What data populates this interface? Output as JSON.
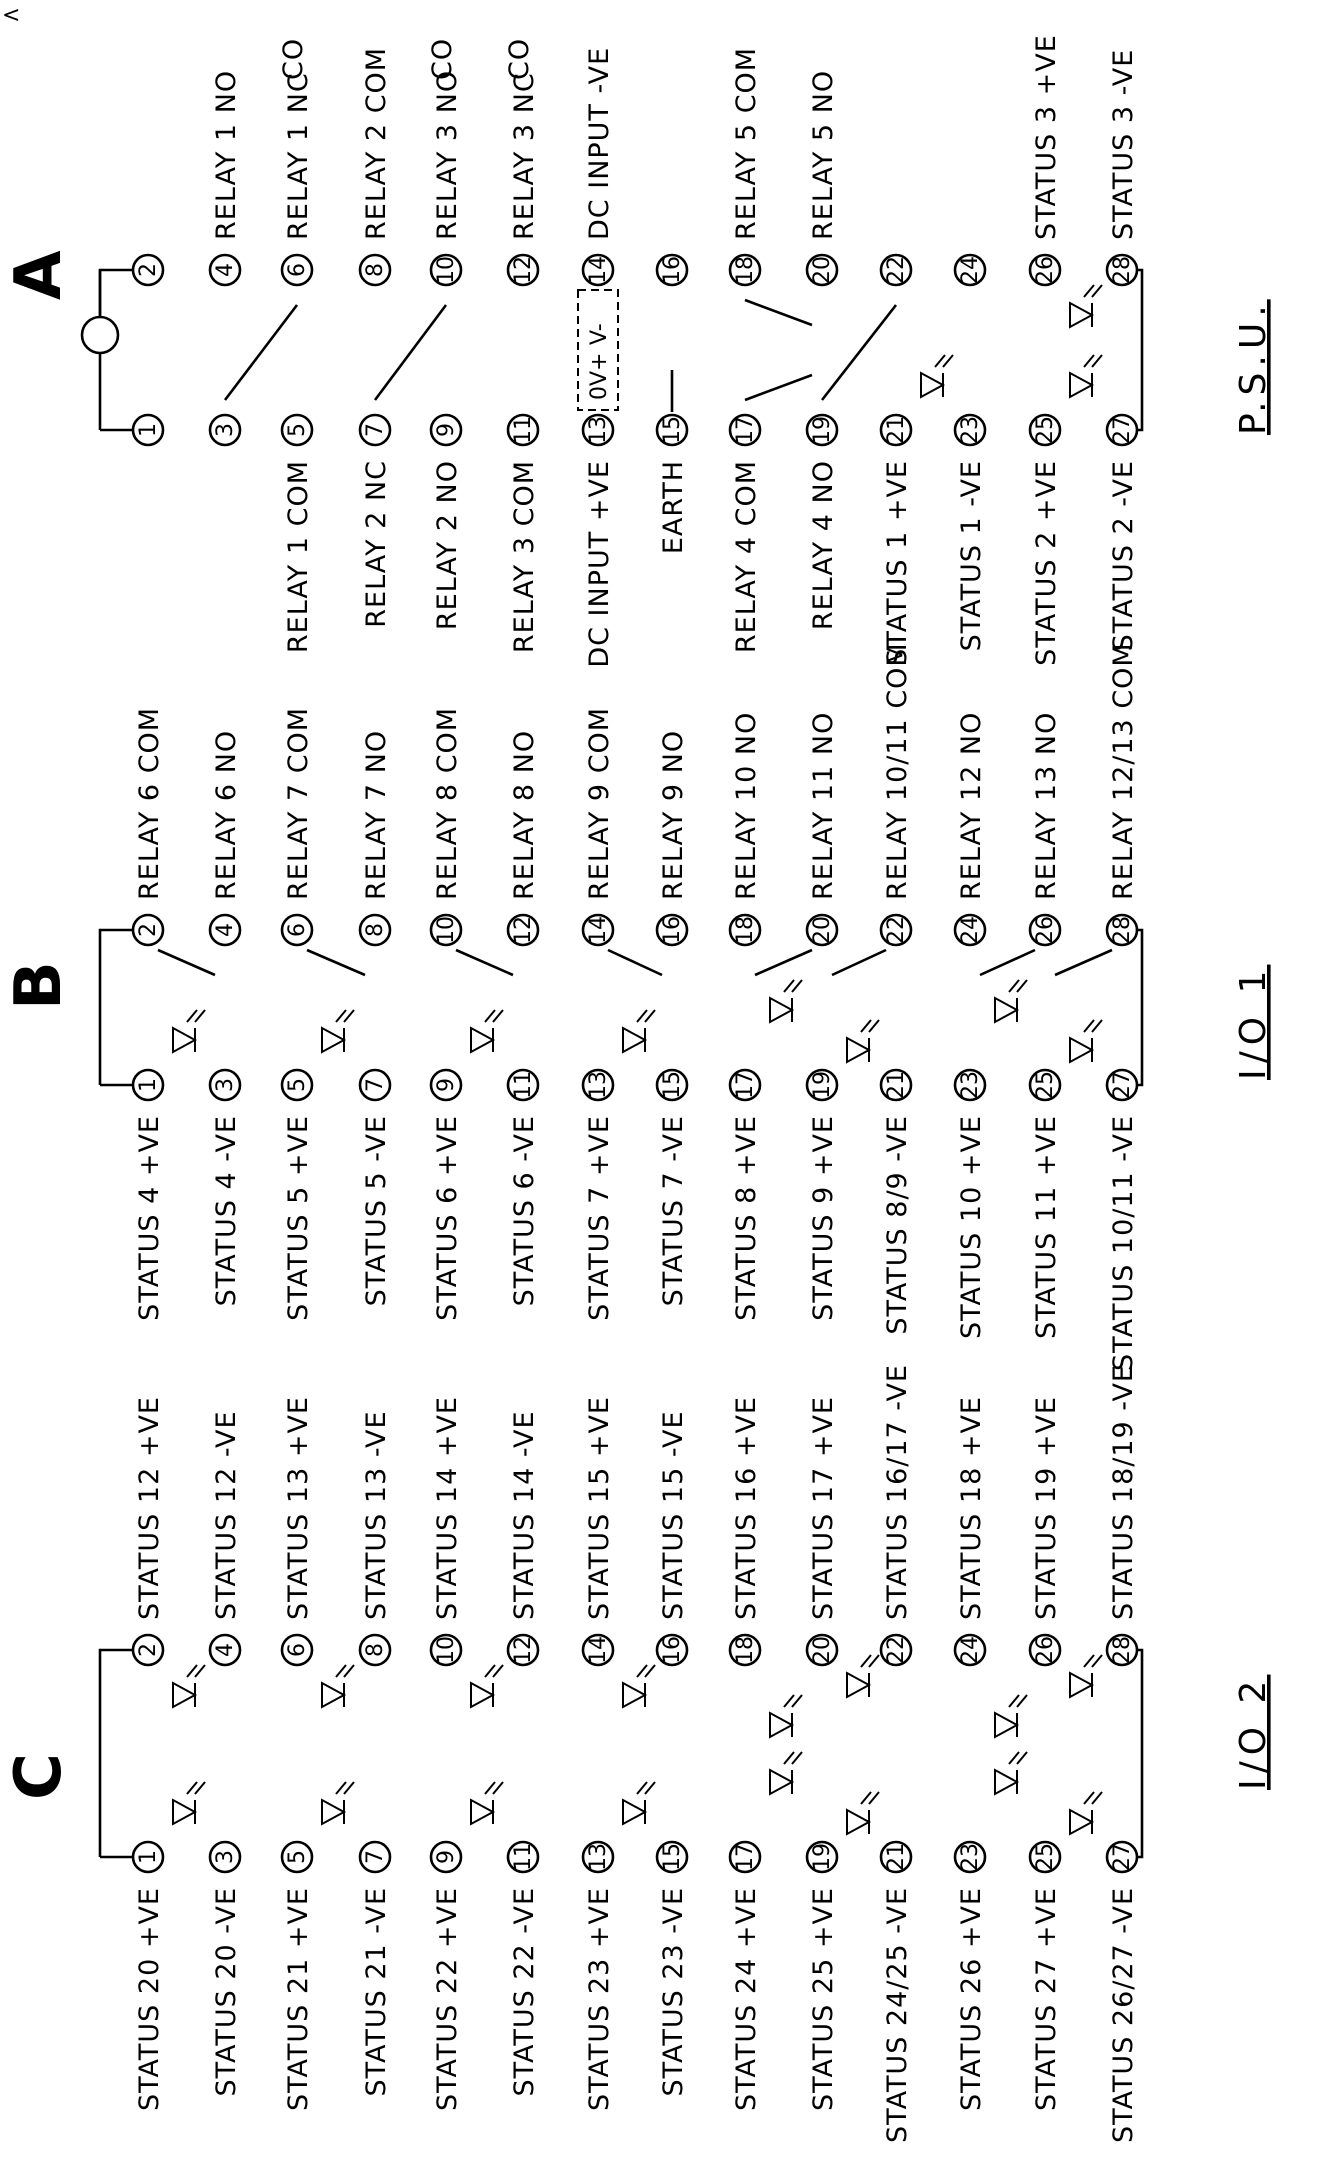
{
  "close_glyph": "<",
  "sections": [
    {
      "letter": "A",
      "title": "P.S.U.",
      "left_labels": [
        "",
        "",
        "RELAY 1 COM",
        "RELAY 2 NC",
        "RELAY 2 NO",
        "RELAY 3 COM",
        "DC INPUT +VE",
        "EARTH",
        "RELAY 4 COM",
        "RELAY 4 NO",
        "STATUS 1 +VE",
        "STATUS 1 -VE",
        "STATUS 2 +VE",
        "STATUS 2 -VE"
      ],
      "right_labels": [
        "",
        "RELAY 1 NO",
        "RELAY 1 NC",
        "RELAY 2 COM",
        "RELAY 3 NO",
        "RELAY 3 NC",
        "DC INPUT -VE",
        "",
        "RELAY 5 COM",
        "RELAY 5 NO",
        "",
        "",
        "STATUS 3 +VE",
        "STATUS 3 -VE"
      ],
      "bracket_labels": [
        "CO",
        "CO",
        "CO"
      ],
      "supply_labels": [
        "0V+",
        "V-"
      ]
    },
    {
      "letter": "B",
      "title": "I/O 1",
      "left_labels": [
        "STATUS 4 +VE",
        "STATUS 4 -VE",
        "STATUS 5 +VE",
        "STATUS 5 -VE",
        "STATUS 6 +VE",
        "STATUS 6 -VE",
        "STATUS 7 +VE",
        "STATUS 7 -VE",
        "STATUS 8 +VE",
        "STATUS 9 +VE",
        "STATUS 8/9 -VE",
        "STATUS 10 +VE",
        "STATUS 11 +VE",
        "STATUS 10/11 -VE"
      ],
      "right_labels": [
        "RELAY 6 COM",
        "RELAY 6 NO",
        "RELAY 7 COM",
        "RELAY 7 NO",
        "RELAY 8 COM",
        "RELAY 8 NO",
        "RELAY 9 COM",
        "RELAY 9 NO",
        "RELAY 10 NO",
        "RELAY 11 NO",
        "RELAY 10/11 COM",
        "RELAY 12 NO",
        "RELAY 13 NO",
        "RELAY 12/13 COM"
      ]
    },
    {
      "letter": "C",
      "title": "I/O 2",
      "left_labels": [
        "STATUS 20 +VE",
        "STATUS 20 -VE",
        "STATUS 21 +VE",
        "STATUS 21 -VE",
        "STATUS 22 +VE",
        "STATUS 22 -VE",
        "STATUS 23 +VE",
        "STATUS 23 -VE",
        "STATUS 24 +VE",
        "STATUS 25 +VE",
        "STATUS 24/25 -VE",
        "STATUS 26 +VE",
        "STATUS 27 +VE",
        "STATUS 26/27 -VE"
      ],
      "right_labels": [
        "STATUS 12 +VE",
        "STATUS 12 -VE",
        "STATUS 13 +VE",
        "STATUS 13 -VE",
        "STATUS 14 +VE",
        "STATUS 14 -VE",
        "STATUS 15 +VE",
        "STATUS 15 -VE",
        "STATUS 16 +VE",
        "STATUS 17 +VE",
        "STATUS 16/17 -VE",
        "STATUS 18 +VE",
        "STATUS 19 +VE",
        "STATUS 18/19 -VE"
      ]
    }
  ],
  "terminal_numbers": {
    "odd": [
      "1",
      "3",
      "5",
      "7",
      "9",
      "11",
      "13",
      "15",
      "17",
      "19",
      "21",
      "23",
      "25",
      "27"
    ],
    "even": [
      "2",
      "4",
      "6",
      "8",
      "10",
      "12",
      "14",
      "16",
      "18",
      "20",
      "22",
      "24",
      "26",
      "28"
    ]
  }
}
